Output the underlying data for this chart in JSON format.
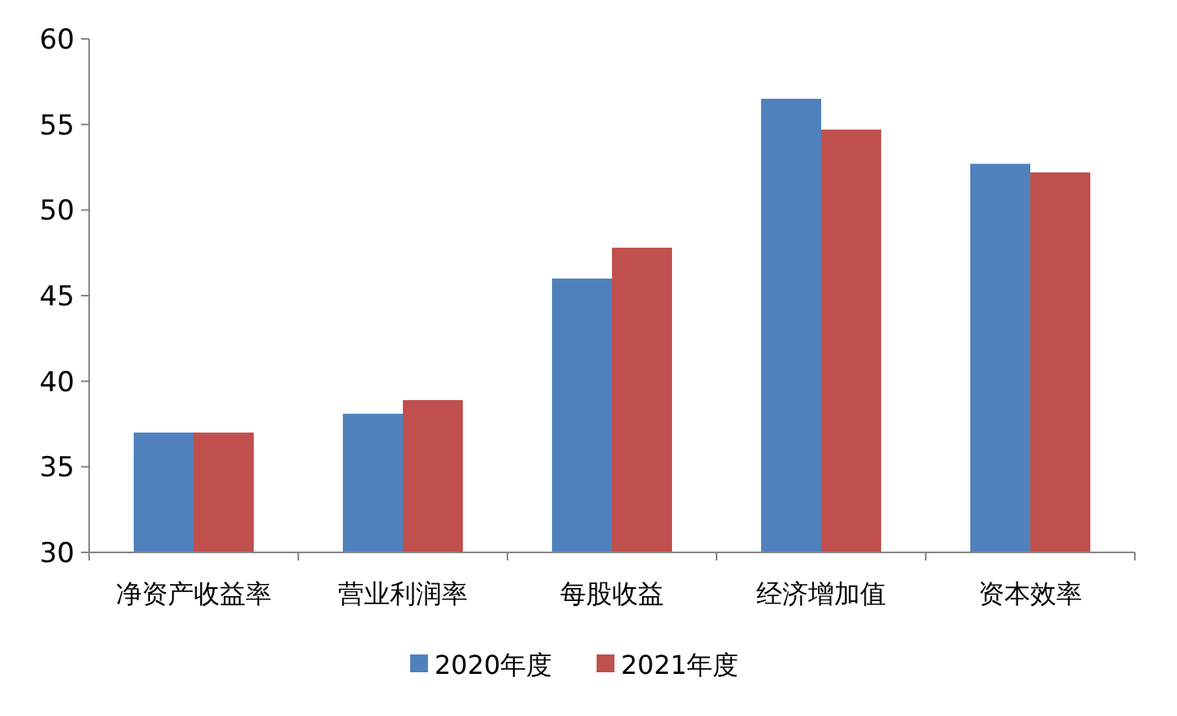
{
  "chart_data": {
    "type": "bar",
    "categories": [
      "净资产收益率",
      "营业利润率",
      "每股收益",
      "经济增加值",
      "资本效率"
    ],
    "series": [
      {
        "name": "2020年度",
        "color": "#4f81bd",
        "values": [
          37.0,
          38.1,
          46.0,
          56.5,
          52.7
        ]
      },
      {
        "name": "2021年度",
        "color": "#c0504d",
        "values": [
          37.0,
          38.9,
          47.8,
          54.7,
          52.2
        ]
      }
    ],
    "ylim": [
      30,
      60
    ],
    "yticks": [
      30,
      35,
      40,
      45,
      50,
      55,
      60
    ],
    "grid": false,
    "legend": "bottom"
  }
}
